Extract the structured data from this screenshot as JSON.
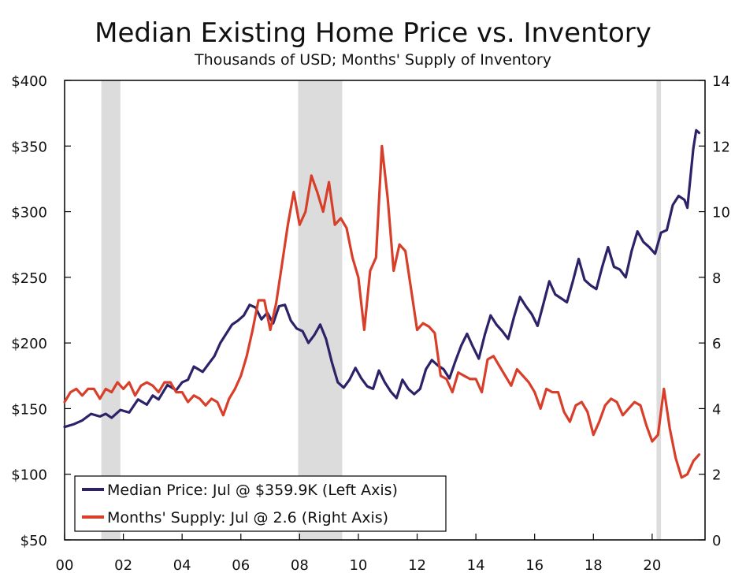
{
  "chart_data": {
    "type": "line",
    "title": "Median Existing Home Price vs. Inventory",
    "subtitle": "Thousands of USD; Months' Supply of Inventory",
    "x_range": [
      2000,
      2021.8
    ],
    "x_ticks": [
      {
        "value": 2000,
        "label": "00"
      },
      {
        "value": 2002,
        "label": "02"
      },
      {
        "value": 2004,
        "label": "04"
      },
      {
        "value": 2006,
        "label": "06"
      },
      {
        "value": 2008,
        "label": "08"
      },
      {
        "value": 2010,
        "label": "10"
      },
      {
        "value": 2012,
        "label": "12"
      },
      {
        "value": 2014,
        "label": "14"
      },
      {
        "value": 2016,
        "label": "16"
      },
      {
        "value": 2018,
        "label": "18"
      },
      {
        "value": 2020,
        "label": "20"
      }
    ],
    "y_left": {
      "range": [
        50,
        400
      ],
      "ticks": [
        50,
        100,
        150,
        200,
        250,
        300,
        350,
        400
      ],
      "labels": [
        "$50",
        "$100",
        "$150",
        "$200",
        "$250",
        "$300",
        "$350",
        "$400"
      ]
    },
    "y_right": {
      "range": [
        0,
        14
      ],
      "ticks": [
        0,
        2,
        4,
        6,
        8,
        10,
        12,
        14
      ],
      "labels": [
        "0",
        "2",
        "4",
        "6",
        "8",
        "10",
        "12",
        "14"
      ]
    },
    "recessions": [
      [
        2001.25,
        2001.9
      ],
      [
        2007.95,
        2009.45
      ],
      [
        2020.15,
        2020.3
      ]
    ],
    "series": [
      {
        "name": "Median Price: Jul @ $359.9K (Left Axis)",
        "axis": "left",
        "color": "#2b2268",
        "points": [
          [
            2000.0,
            136
          ],
          [
            2000.3,
            138
          ],
          [
            2000.6,
            141
          ],
          [
            2000.9,
            146
          ],
          [
            2001.2,
            144
          ],
          [
            2001.4,
            146
          ],
          [
            2001.6,
            143
          ],
          [
            2001.9,
            149
          ],
          [
            2002.2,
            147
          ],
          [
            2002.5,
            157
          ],
          [
            2002.8,
            153
          ],
          [
            2003.0,
            160
          ],
          [
            2003.2,
            157
          ],
          [
            2003.5,
            168
          ],
          [
            2003.8,
            164
          ],
          [
            2004.0,
            170
          ],
          [
            2004.2,
            172
          ],
          [
            2004.4,
            182
          ],
          [
            2004.7,
            178
          ],
          [
            2004.9,
            184
          ],
          [
            2005.1,
            190
          ],
          [
            2005.3,
            200
          ],
          [
            2005.5,
            207
          ],
          [
            2005.7,
            214
          ],
          [
            2005.9,
            217
          ],
          [
            2006.1,
            221
          ],
          [
            2006.3,
            229
          ],
          [
            2006.5,
            227
          ],
          [
            2006.7,
            218
          ],
          [
            2006.9,
            223
          ],
          [
            2007.1,
            215
          ],
          [
            2007.3,
            228
          ],
          [
            2007.5,
            229
          ],
          [
            2007.7,
            217
          ],
          [
            2007.9,
            211
          ],
          [
            2008.1,
            209
          ],
          [
            2008.3,
            200
          ],
          [
            2008.5,
            206
          ],
          [
            2008.7,
            214
          ],
          [
            2008.9,
            203
          ],
          [
            2009.1,
            185
          ],
          [
            2009.3,
            170
          ],
          [
            2009.5,
            166
          ],
          [
            2009.7,
            172
          ],
          [
            2009.9,
            181
          ],
          [
            2010.1,
            173
          ],
          [
            2010.3,
            167
          ],
          [
            2010.5,
            165
          ],
          [
            2010.7,
            179
          ],
          [
            2010.9,
            170
          ],
          [
            2011.1,
            163
          ],
          [
            2011.3,
            158
          ],
          [
            2011.5,
            172
          ],
          [
            2011.7,
            165
          ],
          [
            2011.9,
            161
          ],
          [
            2012.1,
            165
          ],
          [
            2012.3,
            180
          ],
          [
            2012.5,
            187
          ],
          [
            2012.7,
            183
          ],
          [
            2012.9,
            180
          ],
          [
            2013.1,
            173
          ],
          [
            2013.3,
            186
          ],
          [
            2013.5,
            198
          ],
          [
            2013.7,
            207
          ],
          [
            2013.9,
            197
          ],
          [
            2014.1,
            188
          ],
          [
            2014.3,
            206
          ],
          [
            2014.5,
            221
          ],
          [
            2014.7,
            214
          ],
          [
            2014.9,
            209
          ],
          [
            2015.1,
            203
          ],
          [
            2015.3,
            220
          ],
          [
            2015.5,
            235
          ],
          [
            2015.7,
            228
          ],
          [
            2015.9,
            222
          ],
          [
            2016.1,
            213
          ],
          [
            2016.3,
            230
          ],
          [
            2016.5,
            247
          ],
          [
            2016.7,
            237
          ],
          [
            2016.9,
            234
          ],
          [
            2017.1,
            231
          ],
          [
            2017.3,
            247
          ],
          [
            2017.5,
            264
          ],
          [
            2017.7,
            248
          ],
          [
            2017.9,
            244
          ],
          [
            2018.1,
            241
          ],
          [
            2018.3,
            258
          ],
          [
            2018.5,
            273
          ],
          [
            2018.7,
            258
          ],
          [
            2018.9,
            256
          ],
          [
            2019.1,
            250
          ],
          [
            2019.3,
            270
          ],
          [
            2019.5,
            285
          ],
          [
            2019.7,
            277
          ],
          [
            2019.9,
            273
          ],
          [
            2020.1,
            268
          ],
          [
            2020.3,
            284
          ],
          [
            2020.5,
            286
          ],
          [
            2020.7,
            305
          ],
          [
            2020.9,
            312
          ],
          [
            2021.1,
            309
          ],
          [
            2021.2,
            303
          ],
          [
            2021.4,
            348
          ],
          [
            2021.5,
            362
          ],
          [
            2021.6,
            360
          ]
        ]
      },
      {
        "name": "Months' Supply: Jul @ 2.6 (Right Axis)",
        "axis": "right",
        "color": "#d83f2b",
        "points": [
          [
            2000.0,
            4.2
          ],
          [
            2000.2,
            4.5
          ],
          [
            2000.4,
            4.6
          ],
          [
            2000.6,
            4.4
          ],
          [
            2000.8,
            4.6
          ],
          [
            2001.0,
            4.6
          ],
          [
            2001.2,
            4.3
          ],
          [
            2001.4,
            4.6
          ],
          [
            2001.6,
            4.5
          ],
          [
            2001.8,
            4.8
          ],
          [
            2002.0,
            4.6
          ],
          [
            2002.2,
            4.8
          ],
          [
            2002.4,
            4.4
          ],
          [
            2002.6,
            4.7
          ],
          [
            2002.8,
            4.8
          ],
          [
            2003.0,
            4.7
          ],
          [
            2003.2,
            4.5
          ],
          [
            2003.4,
            4.8
          ],
          [
            2003.6,
            4.8
          ],
          [
            2003.8,
            4.5
          ],
          [
            2004.0,
            4.5
          ],
          [
            2004.2,
            4.2
          ],
          [
            2004.4,
            4.4
          ],
          [
            2004.6,
            4.3
          ],
          [
            2004.8,
            4.1
          ],
          [
            2005.0,
            4.3
          ],
          [
            2005.2,
            4.2
          ],
          [
            2005.4,
            3.8
          ],
          [
            2005.6,
            4.3
          ],
          [
            2005.8,
            4.6
          ],
          [
            2006.0,
            5.0
          ],
          [
            2006.2,
            5.6
          ],
          [
            2006.4,
            6.4
          ],
          [
            2006.6,
            7.3
          ],
          [
            2006.8,
            7.3
          ],
          [
            2007.0,
            6.4
          ],
          [
            2007.2,
            7.2
          ],
          [
            2007.4,
            8.4
          ],
          [
            2007.6,
            9.6
          ],
          [
            2007.8,
            10.6
          ],
          [
            2008.0,
            9.6
          ],
          [
            2008.2,
            10.0
          ],
          [
            2008.4,
            11.1
          ],
          [
            2008.6,
            10.6
          ],
          [
            2008.8,
            10.0
          ],
          [
            2009.0,
            10.9
          ],
          [
            2009.2,
            9.6
          ],
          [
            2009.4,
            9.8
          ],
          [
            2009.6,
            9.5
          ],
          [
            2009.8,
            8.6
          ],
          [
            2010.0,
            8.0
          ],
          [
            2010.2,
            6.4
          ],
          [
            2010.4,
            8.2
          ],
          [
            2010.6,
            8.6
          ],
          [
            2010.8,
            12.0
          ],
          [
            2011.0,
            10.4
          ],
          [
            2011.2,
            8.2
          ],
          [
            2011.4,
            9.0
          ],
          [
            2011.6,
            8.8
          ],
          [
            2011.8,
            7.6
          ],
          [
            2012.0,
            6.4
          ],
          [
            2012.2,
            6.6
          ],
          [
            2012.4,
            6.5
          ],
          [
            2012.6,
            6.3
          ],
          [
            2012.8,
            5.0
          ],
          [
            2013.0,
            4.9
          ],
          [
            2013.2,
            4.5
          ],
          [
            2013.4,
            5.1
          ],
          [
            2013.6,
            5.0
          ],
          [
            2013.8,
            4.9
          ],
          [
            2014.0,
            4.9
          ],
          [
            2014.2,
            4.5
          ],
          [
            2014.4,
            5.5
          ],
          [
            2014.6,
            5.6
          ],
          [
            2014.8,
            5.3
          ],
          [
            2015.0,
            5.0
          ],
          [
            2015.2,
            4.7
          ],
          [
            2015.4,
            5.2
          ],
          [
            2015.6,
            5.0
          ],
          [
            2015.8,
            4.8
          ],
          [
            2016.0,
            4.5
          ],
          [
            2016.2,
            4.0
          ],
          [
            2016.4,
            4.6
          ],
          [
            2016.6,
            4.5
          ],
          [
            2016.8,
            4.5
          ],
          [
            2017.0,
            3.9
          ],
          [
            2017.2,
            3.6
          ],
          [
            2017.4,
            4.1
          ],
          [
            2017.6,
            4.2
          ],
          [
            2017.8,
            3.9
          ],
          [
            2018.0,
            3.2
          ],
          [
            2018.2,
            3.6
          ],
          [
            2018.4,
            4.1
          ],
          [
            2018.6,
            4.3
          ],
          [
            2018.8,
            4.2
          ],
          [
            2019.0,
            3.8
          ],
          [
            2019.2,
            4.0
          ],
          [
            2019.4,
            4.2
          ],
          [
            2019.6,
            4.1
          ],
          [
            2019.8,
            3.5
          ],
          [
            2020.0,
            3.0
          ],
          [
            2020.2,
            3.2
          ],
          [
            2020.4,
            4.6
          ],
          [
            2020.6,
            3.4
          ],
          [
            2020.8,
            2.5
          ],
          [
            2021.0,
            1.9
          ],
          [
            2021.2,
            2.0
          ],
          [
            2021.4,
            2.4
          ],
          [
            2021.6,
            2.6
          ]
        ]
      }
    ]
  }
}
